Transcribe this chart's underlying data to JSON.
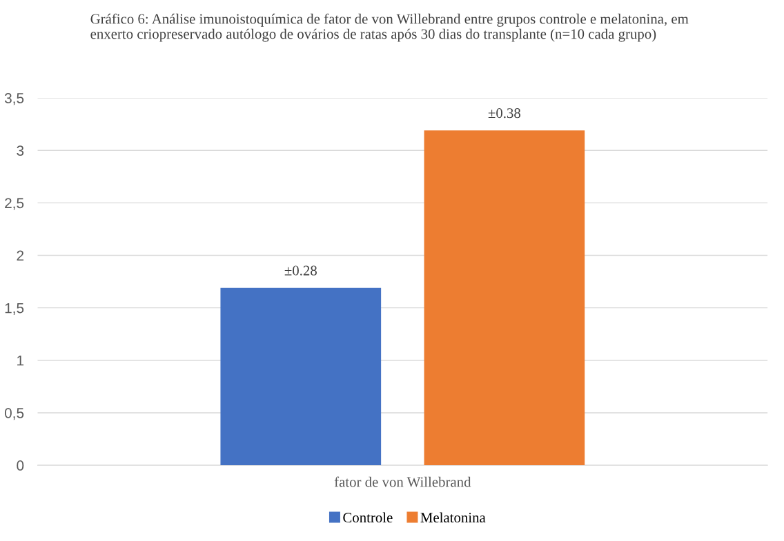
{
  "chart_data": {
    "type": "bar",
    "title": "Gráfico 6: Análise imunoistoquímica de fator de von Willebrand entre grupos controle e melatonina, em enxerto criopreservado autólogo de ovários de ratas após 30 dias do transplante (n=10 cada grupo)",
    "categories": [
      "fator de von Willebrand"
    ],
    "series": [
      {
        "name": "Controle",
        "color": "#4472c4",
        "values": [
          1.69
        ]
      },
      {
        "name": "Melatonina",
        "color": "#ed7d31",
        "values": [
          3.19
        ]
      }
    ],
    "annotations": [
      "±0.28",
      "±0.38"
    ],
    "ylim": [
      0,
      3.5
    ],
    "yticks": [
      0,
      {
        "value": 0.5,
        "label": "0,5"
      },
      1,
      {
        "value": 1.5,
        "label": "1,5"
      },
      2,
      {
        "value": 2.5,
        "label": "2,5"
      },
      3,
      {
        "value": 3.5,
        "label": "3,5"
      }
    ],
    "grid": "y",
    "legend": "bottom"
  }
}
